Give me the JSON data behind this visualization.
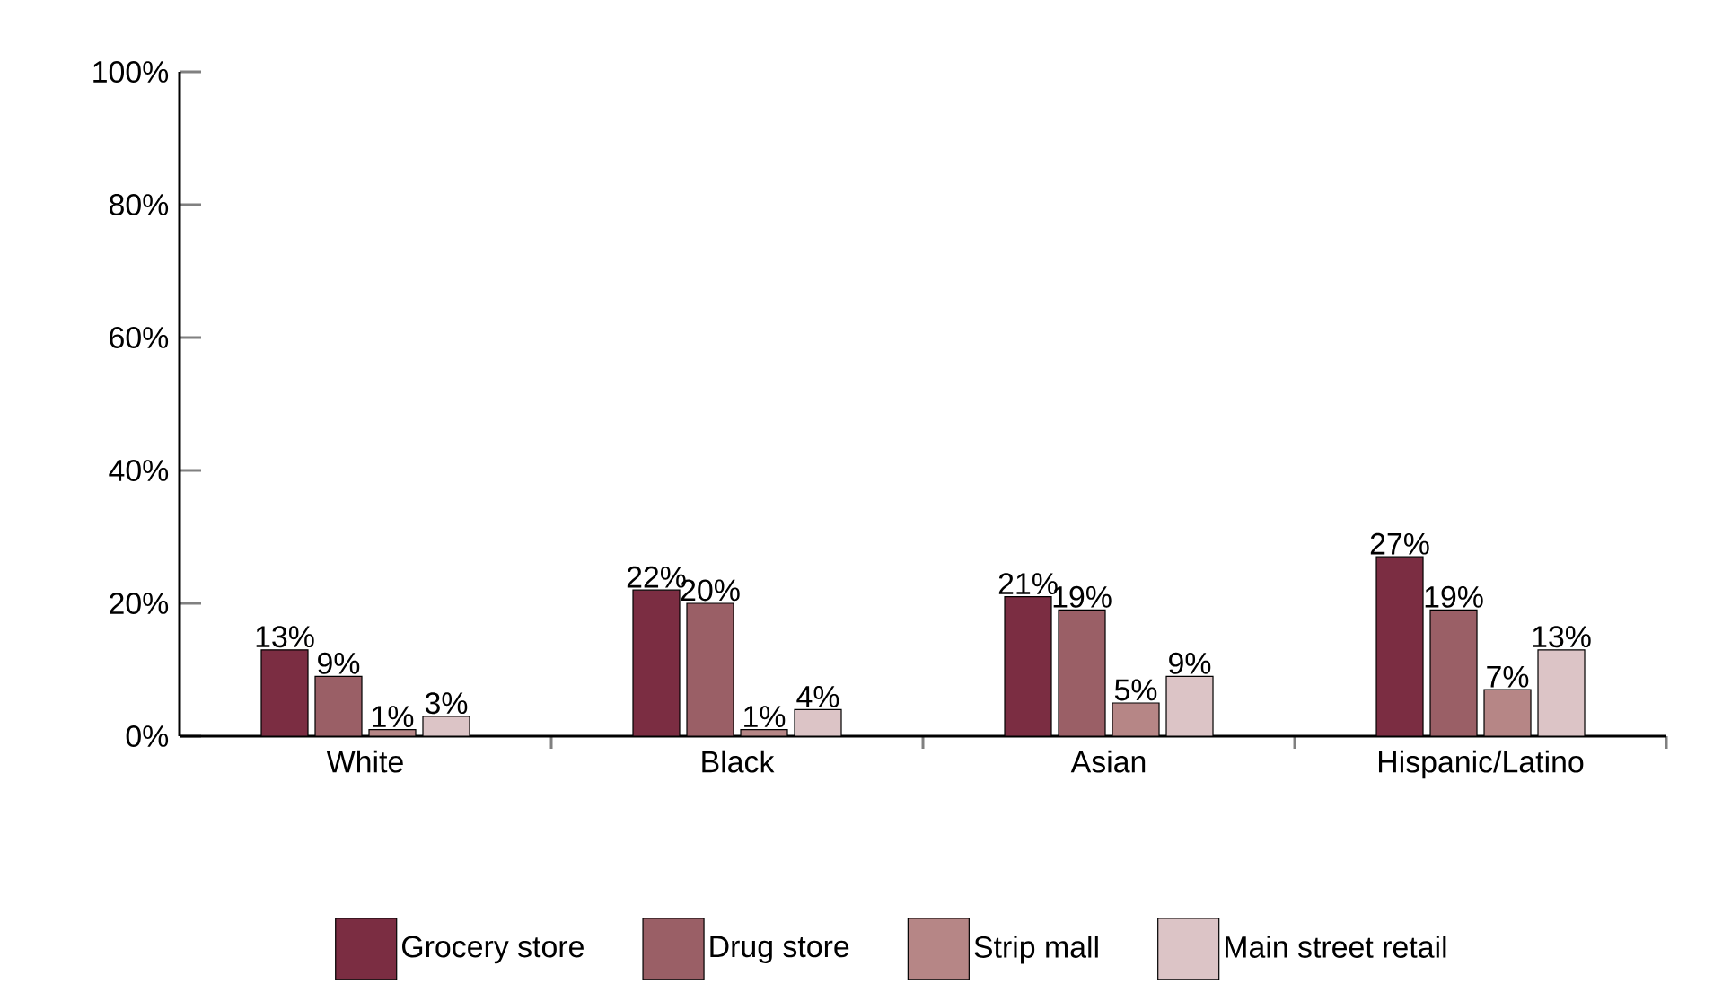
{
  "chart_data": {
    "type": "bar",
    "categories": [
      "White",
      "Black",
      "Asian",
      "Hispanic/Latino"
    ],
    "series": [
      {
        "name": "Grocery store",
        "color": "#7b2d42",
        "values": [
          13,
          22,
          21,
          27
        ],
        "value_labels": [
          "13%",
          "22%",
          "21%",
          "27%"
        ]
      },
      {
        "name": "Drug store",
        "color": "#9a5f66",
        "values": [
          9,
          20,
          19,
          19
        ],
        "value_labels": [
          "9%",
          "20%",
          "19%",
          "19%"
        ]
      },
      {
        "name": "Strip mall",
        "color": "#b68686",
        "values": [
          1,
          1,
          5,
          7
        ],
        "value_labels": [
          "1%",
          "1%",
          "5%",
          "7%"
        ]
      },
      {
        "name": "Main street retail",
        "color": "#dcc4c6",
        "values": [
          3,
          4,
          9,
          13
        ],
        "value_labels": [
          "3%",
          "4%",
          "9%",
          "13%"
        ]
      }
    ],
    "ylim": [
      0,
      100
    ],
    "yticks": [
      {
        "value": 0,
        "label": "0%"
      },
      {
        "value": 20,
        "label": "20%"
      },
      {
        "value": 40,
        "label": "40%"
      },
      {
        "value": 60,
        "label": "60%"
      },
      {
        "value": 80,
        "label": "80%"
      },
      {
        "value": 100,
        "label": "100%"
      }
    ],
    "grid": false,
    "legend": "bottom"
  }
}
